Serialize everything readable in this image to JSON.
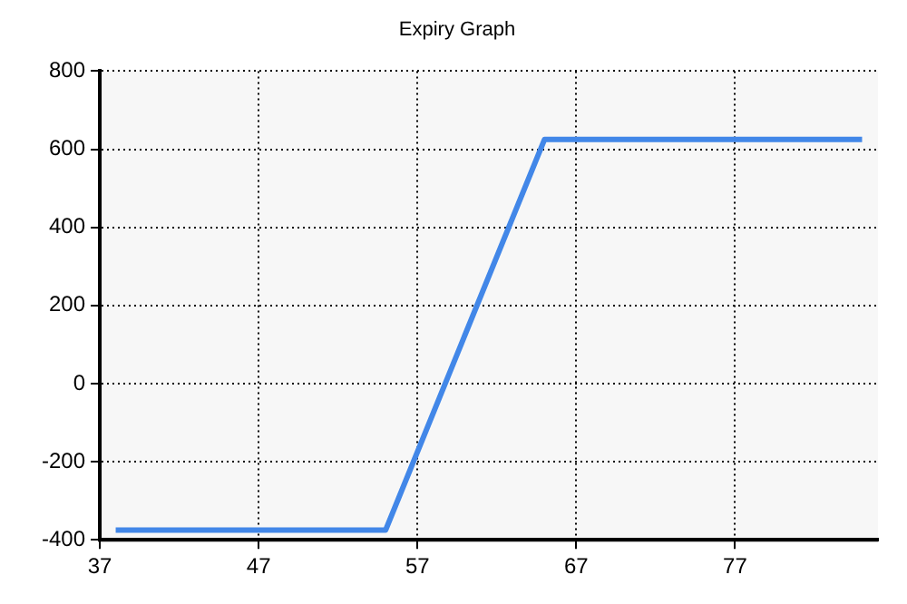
{
  "chart_data": {
    "type": "line",
    "title": "Expiry Graph",
    "x": [
      38,
      55,
      65,
      85
    ],
    "series": [
      {
        "color": "#4287e8",
        "values": [
          -375,
          -375,
          625,
          625
        ]
      }
    ],
    "xlim": [
      37,
      86
    ],
    "xticks": [
      37,
      47,
      57,
      67,
      77
    ],
    "ylim": [
      -400,
      800
    ],
    "yticks": [
      -400,
      -200,
      0,
      200,
      400,
      600,
      800
    ],
    "grid": true,
    "legend": false,
    "marker": "none",
    "line_style": "solid"
  }
}
